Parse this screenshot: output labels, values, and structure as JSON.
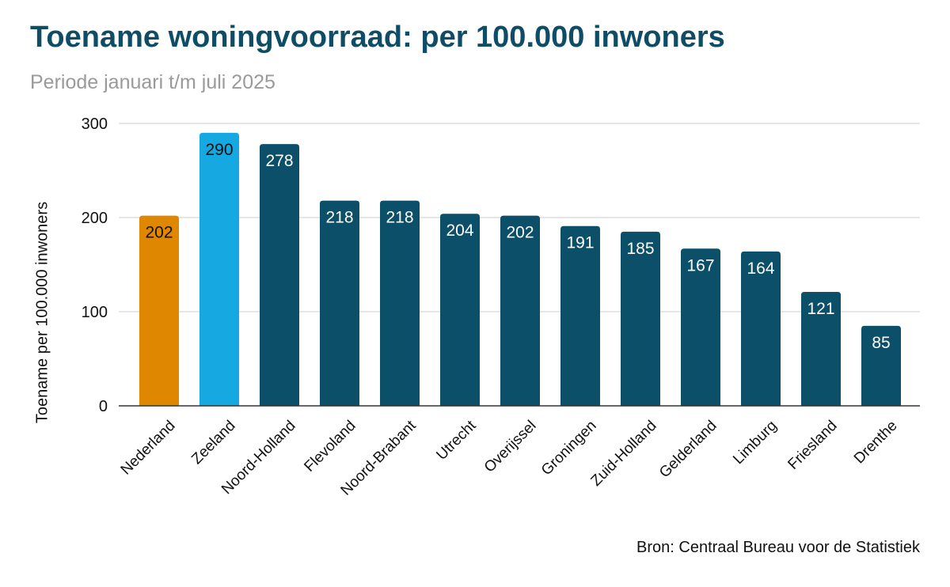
{
  "chart_data": {
    "type": "bar",
    "title": "Toename woningvoorraad: per 100.000 inwoners",
    "subtitle": "Periode januari t/m juli 2025",
    "ylabel": "Toename per 100.000 inwoners",
    "xlabel": "",
    "ylim": [
      0,
      300
    ],
    "yticks": [
      0,
      100,
      200,
      300
    ],
    "grid": true,
    "categories": [
      "Nederland",
      "Zeeland",
      "Noord-Holland",
      "Flevoland",
      "Noord-Brabant",
      "Utrecht",
      "Overijssel",
      "Groningen",
      "Zuid-Holland",
      "Gelderland",
      "Limburg",
      "Friesland",
      "Drenthe"
    ],
    "values": [
      202,
      290,
      278,
      218,
      218,
      204,
      202,
      191,
      185,
      167,
      164,
      121,
      85
    ],
    "bar_colors": [
      "#e08700",
      "#16a8e0",
      "#0b4f68",
      "#0b4f68",
      "#0b4f68",
      "#0b4f68",
      "#0b4f68",
      "#0b4f68",
      "#0b4f68",
      "#0b4f68",
      "#0b4f68",
      "#0b4f68",
      "#0b4f68"
    ],
    "label_colors": [
      "#111111",
      "#111111",
      "#ffffff",
      "#ffffff",
      "#ffffff",
      "#ffffff",
      "#ffffff",
      "#ffffff",
      "#ffffff",
      "#ffffff",
      "#ffffff",
      "#ffffff",
      "#ffffff"
    ],
    "source": "Bron: Centraal Bureau voor de Statistiek"
  }
}
